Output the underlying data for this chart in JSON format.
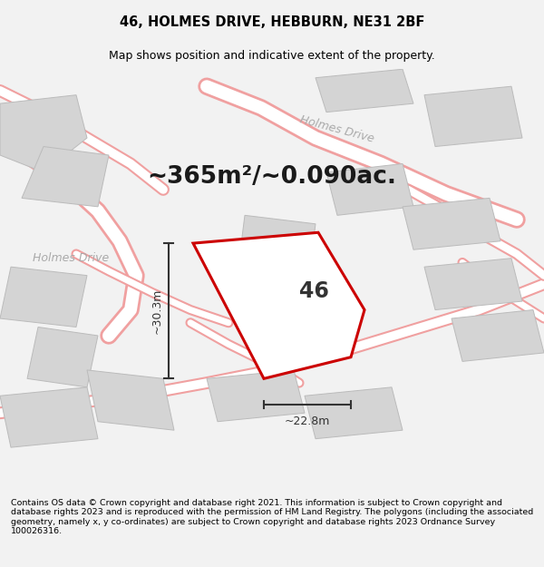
{
  "title": "46, HOLMES DRIVE, HEBBURN, NE31 2BF",
  "subtitle": "Map shows position and indicative extent of the property.",
  "area_text": "~365m²/~0.090ac.",
  "width_text": "~22.8m",
  "height_text": "~30.3m",
  "house_number": "46",
  "footer": "Contains OS data © Crown copyright and database right 2021. This information is subject to Crown copyright and database rights 2023 and is reproduced with the permission of HM Land Registry. The polygons (including the associated geometry, namely x, y co-ordinates) are subject to Crown copyright and database rights 2023 Ordnance Survey 100026316.",
  "bg_color": "#f2f2f2",
  "map_bg": "#ffffff",
  "road_color": "#f0a0a0",
  "road_lw": 1.2,
  "building_fill": "#d4d4d4",
  "building_edge": "#bbbbbb",
  "plot_fill": "#ffffff",
  "plot_edge": "#cc0000",
  "plot_lw": 2.2,
  "dim_color": "#333333",
  "title_fontsize": 10.5,
  "subtitle_fontsize": 9,
  "area_fontsize": 19,
  "footer_fontsize": 6.8,
  "road_label_color": "#aaaaaa",
  "road_label_size": 9
}
